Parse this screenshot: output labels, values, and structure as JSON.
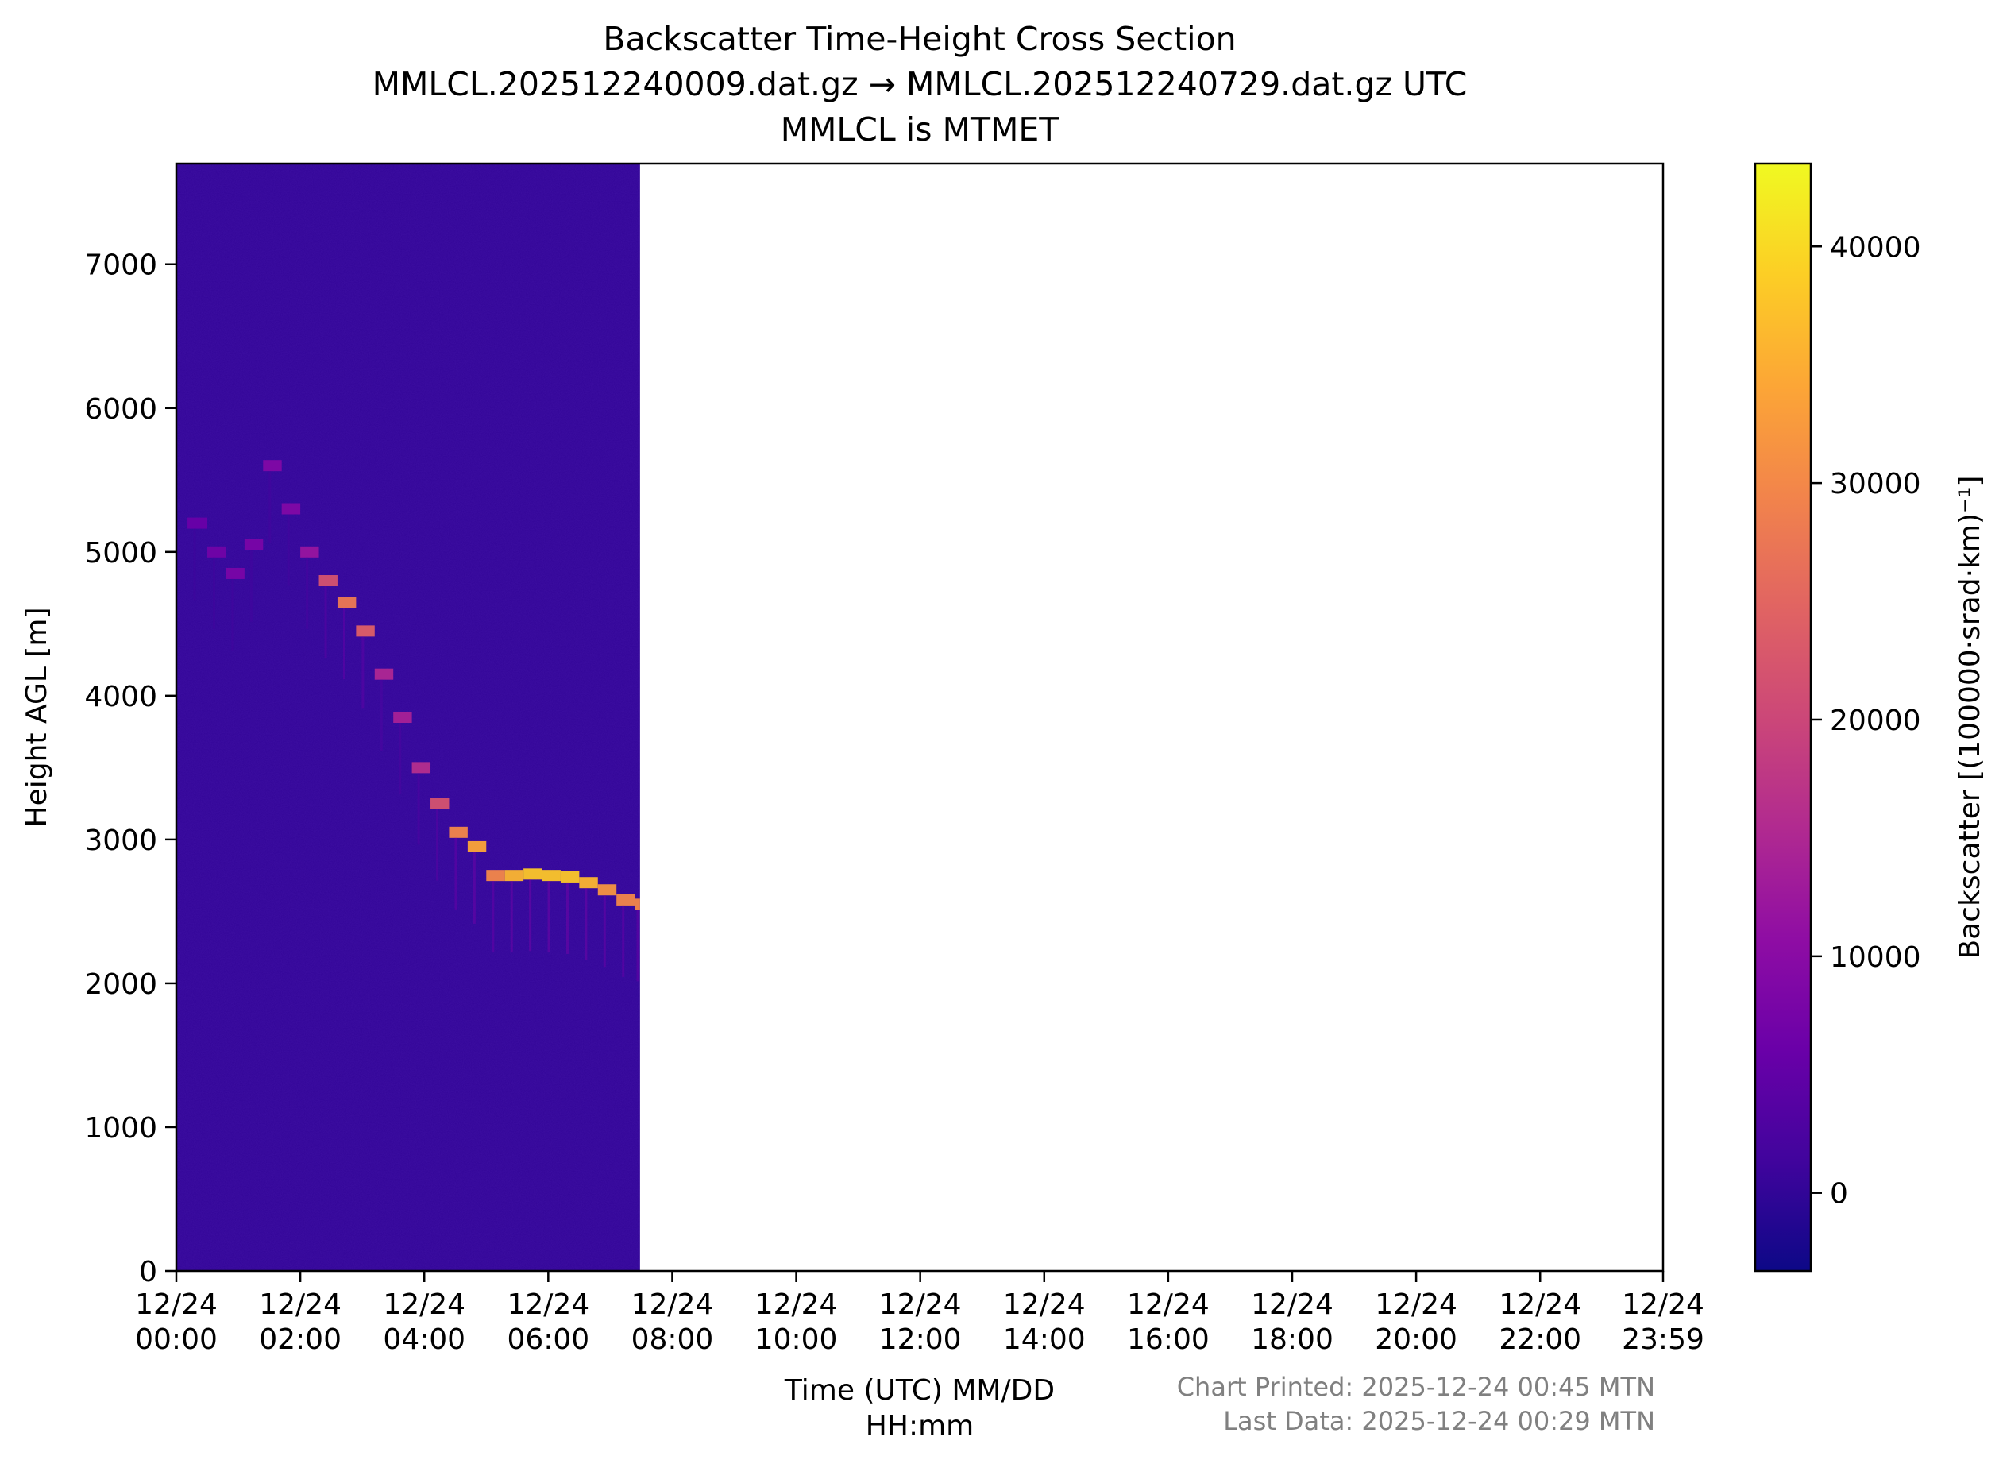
{
  "chart_data": {
    "type": "heatmap",
    "title": [
      "Backscatter Time-Height Cross Section",
      "MMLCL.202512240009.dat.gz → MMLCL.202512240729.dat.gz UTC",
      "MMLCL is MTMET"
    ],
    "xlabel": [
      "Time (UTC) MM/DD",
      "HH:mm"
    ],
    "ylabel": "Height AGL [m]",
    "x_ticks": [
      {
        "hours": 0,
        "label": [
          "12/24",
          "00:00"
        ]
      },
      {
        "hours": 2,
        "label": [
          "12/24",
          "02:00"
        ]
      },
      {
        "hours": 4,
        "label": [
          "12/24",
          "04:00"
        ]
      },
      {
        "hours": 6,
        "label": [
          "12/24",
          "06:00"
        ]
      },
      {
        "hours": 8,
        "label": [
          "12/24",
          "08:00"
        ]
      },
      {
        "hours": 10,
        "label": [
          "12/24",
          "10:00"
        ]
      },
      {
        "hours": 12,
        "label": [
          "12/24",
          "12:00"
        ]
      },
      {
        "hours": 14,
        "label": [
          "12/24",
          "14:00"
        ]
      },
      {
        "hours": 16,
        "label": [
          "12/24",
          "16:00"
        ]
      },
      {
        "hours": 18,
        "label": [
          "12/24",
          "18:00"
        ]
      },
      {
        "hours": 20,
        "label": [
          "12/24",
          "20:00"
        ]
      },
      {
        "hours": 22,
        "label": [
          "12/24",
          "22:00"
        ]
      },
      {
        "hours": 23.983,
        "label": [
          "12/24",
          "23:59"
        ]
      }
    ],
    "xlim_hours": [
      0,
      23.983
    ],
    "y_ticks": [
      0,
      1000,
      2000,
      3000,
      4000,
      5000,
      6000,
      7000
    ],
    "ylim": [
      0,
      7700
    ],
    "data_extent_hours": [
      0,
      7.48
    ],
    "background_value": 0,
    "cloud_layer": {
      "hours": [
        0.18,
        0.5,
        0.8,
        1.1,
        1.4,
        1.7,
        2.0,
        2.3,
        2.6,
        2.9,
        3.2,
        3.5,
        3.8,
        4.1,
        4.4,
        4.7,
        5.0,
        5.3,
        5.6,
        5.9,
        6.2,
        6.5,
        6.8,
        7.1,
        7.4
      ],
      "height_m": [
        5200,
        5000,
        4850,
        5050,
        5600,
        5300,
        5000,
        4800,
        4650,
        4450,
        4150,
        3850,
        3500,
        3250,
        3050,
        2950,
        2750,
        2750,
        2760,
        2750,
        2740,
        2700,
        2650,
        2580,
        2550
      ],
      "intensity": [
        6000,
        7000,
        8000,
        8000,
        9000,
        9000,
        12000,
        22000,
        28000,
        24000,
        15000,
        14000,
        16000,
        22000,
        30000,
        34000,
        30000,
        36000,
        38000,
        38000,
        38000,
        36000,
        32000,
        30000,
        30000
      ]
    },
    "colorbar": {
      "label": "Backscatter [(100000·srad·km)⁻¹]",
      "colormap": "plasma",
      "range": [
        -3300,
        43500
      ],
      "ticks": [
        0,
        10000,
        20000,
        30000,
        40000
      ]
    }
  },
  "footer": {
    "printed": "Chart Printed: 2025-12-24 00:45 MTN",
    "last_data": "Last Data: 2025-12-24 00:29 MTN"
  }
}
